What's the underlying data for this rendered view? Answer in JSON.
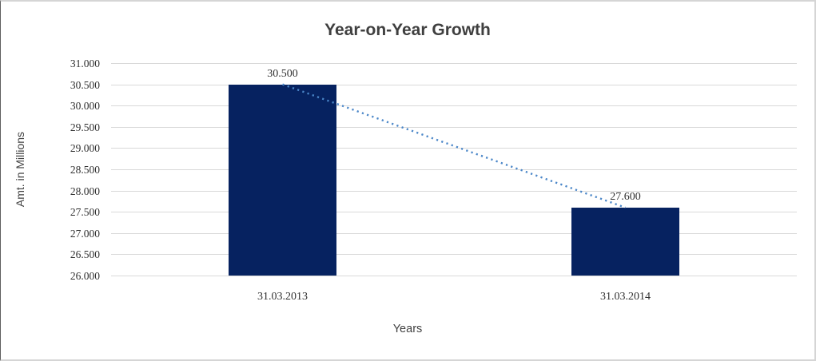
{
  "chart_data": {
    "type": "bar",
    "title": "Year-on-Year Growth",
    "categories": [
      "31.03.2013",
      "31.03.2014"
    ],
    "values": [
      30.5,
      27.6
    ],
    "data_labels": [
      "30.500",
      "27.600"
    ],
    "xlabel": "Years",
    "ylabel": "Amt. in Millions",
    "ylim": [
      26.0,
      31.0
    ],
    "ytick_step": 0.5,
    "yticks": [
      "31.000",
      "30.500",
      "30.000",
      "29.500",
      "29.000",
      "28.500",
      "28.000",
      "27.500",
      "27.000",
      "26.500",
      "26.000"
    ],
    "grid": true,
    "legend": false,
    "trendline": {
      "style": "dotted",
      "from_value": 30.5,
      "to_value": 27.6
    },
    "colors": {
      "bar": "#062260",
      "trendline": "#4a86c8",
      "gridline": "#d9d9d9",
      "text": "#303030",
      "title_text": "#3f3f3f"
    }
  }
}
